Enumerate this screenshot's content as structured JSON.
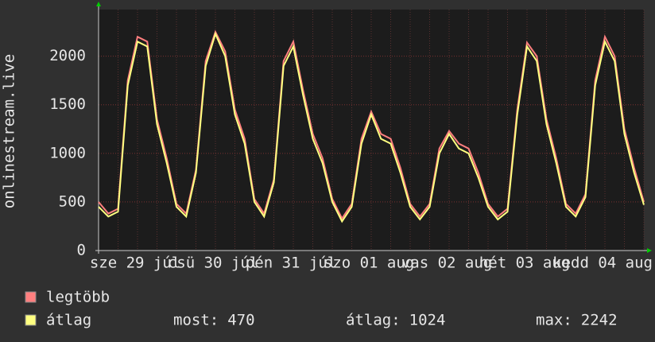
{
  "chart_data": {
    "type": "line",
    "y_label": "onlinestream.live",
    "x_labels": [
      "sze 29 júl",
      "csü 30 júl",
      "pén 31 júl",
      "szo 01 aug",
      "vas 02 aug",
      "hét 03 aug",
      "kedd 04 aug"
    ],
    "ylim": [
      0,
      2480
    ],
    "yticks": [
      0,
      500,
      1000,
      1500,
      2000
    ],
    "grid": true,
    "series": [
      {
        "name": "legtöbb",
        "color": "#ff7f7f",
        "values": [
          500,
          380,
          430,
          1750,
          2200,
          2150,
          1350,
          950,
          480,
          380,
          830,
          1950,
          2250,
          2050,
          1450,
          1150,
          530,
          380,
          730,
          1950,
          2150,
          1650,
          1200,
          950,
          530,
          330,
          480,
          1150,
          1430,
          1200,
          1150,
          850,
          480,
          350,
          480,
          1050,
          1230,
          1100,
          1050,
          800,
          480,
          350,
          430,
          1450,
          2140,
          2000,
          1350,
          950,
          480,
          380,
          580,
          1750,
          2200,
          2000,
          1250,
          850,
          500
        ]
      },
      {
        "name": "átlag",
        "color": "#ffff80",
        "values": [
          450,
          350,
          400,
          1700,
          2150,
          2100,
          1300,
          900,
          450,
          350,
          800,
          1900,
          2230,
          2000,
          1400,
          1100,
          500,
          350,
          700,
          1900,
          2100,
          1600,
          1150,
          900,
          500,
          300,
          450,
          1100,
          1400,
          1150,
          1100,
          800,
          450,
          320,
          450,
          1000,
          1200,
          1050,
          1000,
          750,
          450,
          320,
          400,
          1400,
          2100,
          1950,
          1300,
          900,
          450,
          350,
          550,
          1700,
          2150,
          1950,
          1200,
          800,
          470
        ]
      }
    ],
    "stats": [
      {
        "label": "most:",
        "value": 470
      },
      {
        "label": "átlag:",
        "value": 1024
      },
      {
        "label": "max:",
        "value": 2242
      }
    ]
  }
}
